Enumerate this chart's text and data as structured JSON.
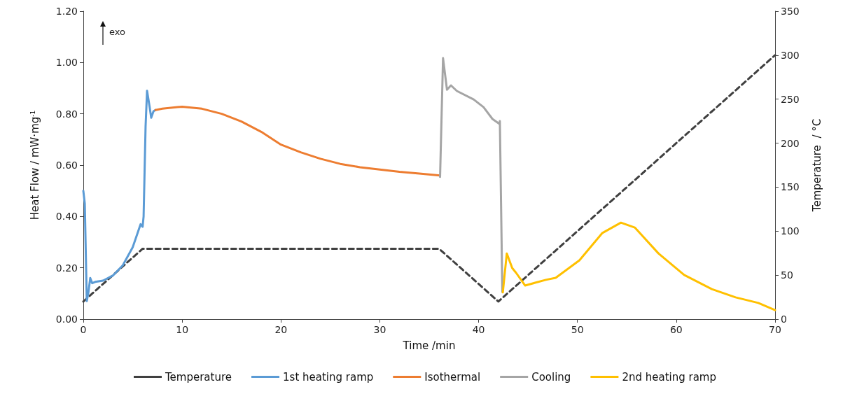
{
  "chart_data": {
    "type": "line",
    "xlabel": "Time /min",
    "ylabel": "Heat Flow / mW·mg$^{-1}$",
    "y2label": "Temperature  / °C",
    "annotations": [
      "exo"
    ],
    "xlim": [
      0,
      70
    ],
    "xticks": [
      0,
      10,
      20,
      30,
      40,
      50,
      60,
      70
    ],
    "ylim": [
      0,
      1.2
    ],
    "yticks": [
      {
        "value": 0,
        "label": "0.00"
      },
      {
        "value": 0.2,
        "label": "0.20"
      },
      {
        "value": 0.4,
        "label": "0.40"
      },
      {
        "value": 0.6,
        "label": "0.60"
      },
      {
        "value": 0.8,
        "label": "0.80"
      },
      {
        "value": 1,
        "label": "1.00"
      },
      {
        "value": 1.2,
        "label": "1.20"
      }
    ],
    "y2lim": [
      0,
      350
    ],
    "y2ticks": [
      0,
      50,
      100,
      150,
      200,
      250,
      300,
      350
    ],
    "grid": false,
    "legend": "bottom",
    "marker": "none",
    "series": [
      {
        "name": "Temperature",
        "color": "#404040",
        "axis": "y2",
        "line_style": "dashed",
        "x": [
          0,
          6,
          36,
          42,
          70
        ],
        "values": [
          20,
          80,
          80,
          20,
          300
        ]
      },
      {
        "name": "1st heating ramp",
        "color": "#5b9bd5",
        "x": [
          0,
          0.15,
          0.35,
          0.5,
          0.7,
          0.9,
          1.2,
          2,
          3,
          4,
          5,
          5.8,
          6,
          6.1,
          6.3,
          6.45,
          6.7,
          6.87,
          7.1,
          7.3
        ],
        "values": [
          0.5,
          0.45,
          0.07,
          0.1,
          0.16,
          0.14,
          0.145,
          0.15,
          0.17,
          0.21,
          0.28,
          0.37,
          0.36,
          0.4,
          0.75,
          0.89,
          0.83,
          0.785,
          0.81,
          0.815
        ]
      },
      {
        "name": "Isothermal",
        "color": "#ed7d31",
        "x": [
          7.3,
          8,
          10,
          12,
          14,
          16,
          18,
          20,
          22,
          24,
          26,
          28,
          30,
          32,
          34,
          36.1
        ],
        "values": [
          0.815,
          0.82,
          0.828,
          0.82,
          0.8,
          0.77,
          0.73,
          0.68,
          0.65,
          0.625,
          0.605,
          0.592,
          0.583,
          0.574,
          0.567,
          0.56
        ]
      },
      {
        "name": "Cooling",
        "color": "#a5a5a5",
        "x": [
          36.1,
          36.4,
          36.8,
          37.2,
          37.8,
          39.5,
          40.5,
          41.4,
          42.1,
          42.15,
          42.4
        ],
        "values": [
          0.554,
          1.017,
          0.894,
          0.911,
          0.889,
          0.856,
          0.826,
          0.78,
          0.761,
          0.772,
          0.106
        ]
      },
      {
        "name": "2nd heating ramp",
        "color": "#ffc000",
        "x": [
          42.45,
          42.85,
          43.4,
          43.8,
          44.7,
          46.8,
          47.8,
          50.2,
          52.5,
          54.4,
          55.8,
          58.2,
          60.8,
          63.6,
          66,
          68.3,
          70
        ],
        "values": [
          0.104,
          0.256,
          0.199,
          0.18,
          0.131,
          0.153,
          0.161,
          0.229,
          0.335,
          0.376,
          0.357,
          0.256,
          0.172,
          0.117,
          0.085,
          0.063,
          0.035
        ]
      }
    ]
  }
}
